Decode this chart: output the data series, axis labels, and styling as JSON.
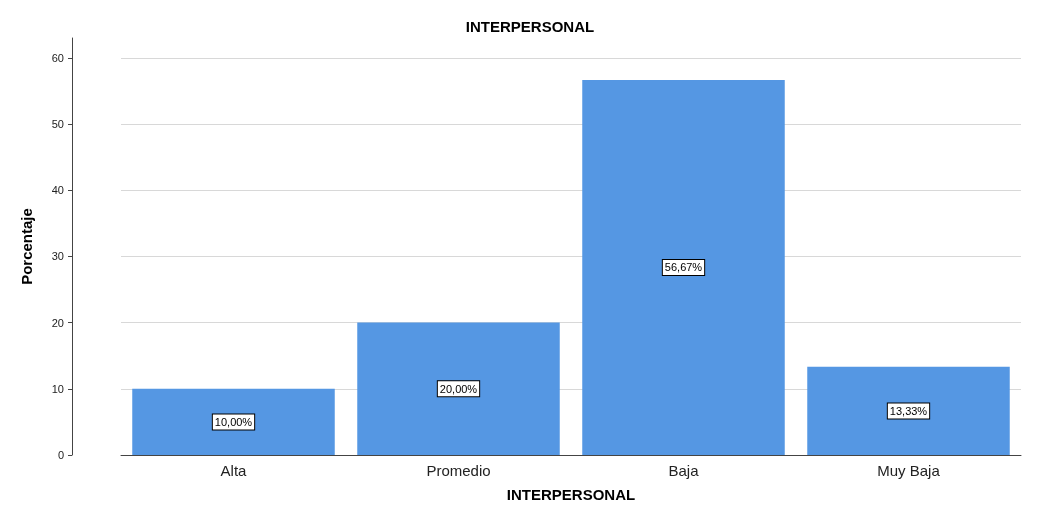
{
  "chart_data": {
    "type": "bar",
    "title": "INTERPERSONAL",
    "xlabel": "INTERPERSONAL",
    "ylabel": "Porcentaje",
    "categories": [
      "Alta",
      "Promedio",
      "Baja",
      "Muy Baja"
    ],
    "values": [
      10,
      20,
      56.67,
      13.33
    ],
    "value_labels": [
      "10,00%",
      "20,00%",
      "56,67%",
      "13,33%"
    ],
    "color": "#5597e3",
    "ylim": [
      0,
      63
    ],
    "yticks": [
      0,
      10,
      20,
      30,
      40,
      50,
      60
    ],
    "grid": "y"
  }
}
